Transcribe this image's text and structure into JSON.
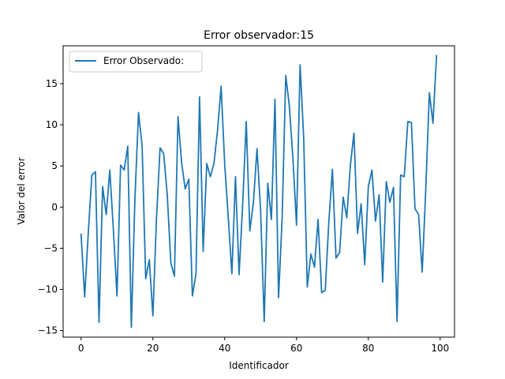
{
  "chart_data": {
    "type": "line",
    "title": "Error observador:15",
    "xlabel": "Identificador",
    "ylabel": "Valor del error",
    "xlim": [
      -5,
      104
    ],
    "ylim": [
      -15.8,
      19.6
    ],
    "xticks": [
      0,
      20,
      40,
      60,
      80,
      100
    ],
    "yticks": [
      -15,
      -10,
      -5,
      0,
      5,
      10,
      15
    ],
    "ytick_labels": [
      "−15",
      "−10",
      "−5",
      "0",
      "5",
      "10",
      "15"
    ],
    "grid": false,
    "legend_position": "upper-left",
    "series": [
      {
        "name": "Error Observado:",
        "color": "#1f77b4",
        "x": [
          0,
          1,
          2,
          3,
          4,
          5,
          6,
          7,
          8,
          9,
          10,
          11,
          12,
          13,
          14,
          15,
          16,
          17,
          18,
          19,
          20,
          21,
          22,
          23,
          24,
          25,
          26,
          27,
          28,
          29,
          30,
          31,
          32,
          33,
          34,
          35,
          36,
          37,
          38,
          39,
          40,
          41,
          42,
          43,
          44,
          45,
          46,
          47,
          48,
          49,
          50,
          51,
          52,
          53,
          54,
          55,
          56,
          57,
          58,
          59,
          60,
          61,
          62,
          63,
          64,
          65,
          66,
          67,
          68,
          69,
          70,
          71,
          72,
          73,
          74,
          75,
          76,
          77,
          78,
          79,
          80,
          81,
          82,
          83,
          84,
          85,
          86,
          87,
          88,
          89,
          90,
          91,
          92,
          93,
          94,
          95,
          96,
          97,
          98,
          99
        ],
        "y": [
          -3.3,
          -10.9,
          -3.2,
          3.9,
          4.3,
          -14.0,
          2.5,
          -0.9,
          4.5,
          -2.8,
          -10.8,
          5.1,
          4.5,
          7.4,
          -14.6,
          1.1,
          11.5,
          7.4,
          -8.7,
          -6.4,
          -13.2,
          -1.4,
          7.2,
          6.5,
          1.5,
          -6.8,
          -8.4,
          11.0,
          5.4,
          2.2,
          3.4,
          -10.8,
          -8.1,
          13.4,
          -5.4,
          5.3,
          3.7,
          5.3,
          9.3,
          14.7,
          5.2,
          -1.3,
          -8.1,
          3.7,
          -8.2,
          0.3,
          10.4,
          -2.9,
          0.6,
          7.1,
          -0.4,
          -13.9,
          2.9,
          -1.5,
          13.1,
          -11.0,
          -1.3,
          16.0,
          12.3,
          5.9,
          -2.2,
          17.3,
          8.4,
          -9.7,
          -5.7,
          -7.3,
          -1.5,
          -10.4,
          -10.1,
          -1.8,
          4.6,
          -6.2,
          -5.5,
          1.2,
          -1.3,
          5.1,
          9.0,
          -3.2,
          0.4,
          -7.0,
          2.5,
          4.5,
          -1.7,
          1.5,
          -9.1,
          3.1,
          0.6,
          2.4,
          -13.9,
          3.9,
          3.7,
          10.4,
          10.3,
          -0.2,
          -0.9,
          -7.9,
          2.2,
          13.9,
          10.2,
          18.4
        ]
      }
    ]
  }
}
